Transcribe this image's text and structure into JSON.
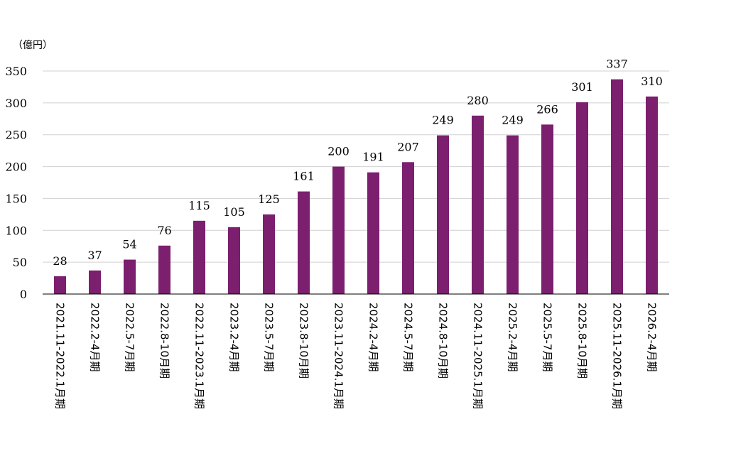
{
  "chart_data": {
    "type": "bar",
    "unit_label": "（億円）",
    "title": "",
    "xlabel": "",
    "ylabel": "",
    "ylim": [
      0,
      350
    ],
    "yticks": [
      0,
      50,
      100,
      150,
      200,
      250,
      300,
      350
    ],
    "grid": true,
    "legend": "none",
    "bar_color": "#7b1f6e",
    "categories": [
      "2021.11-2022.1月期",
      "2022.2-4月期",
      "2022.5-7月期",
      "2022.8-10月期",
      "2022.11-2023.1月期",
      "2023.2-4月期",
      "2023.5-7月期",
      "2023.8-10月期",
      "2023.11-2024.1月期",
      "2024.2-4月期",
      "2024.5-7月期",
      "2024.8-10月期",
      "2024.11-2025.1月期",
      "2025.2-4月期",
      "2025.5-7月期",
      "2025.8-10月期",
      "2025.11-2026.1月期",
      "2026.2-4月期"
    ],
    "values": [
      28,
      37,
      54,
      76,
      115,
      105,
      125,
      161,
      200,
      191,
      207,
      249,
      280,
      249,
      266,
      301,
      337,
      310
    ]
  }
}
